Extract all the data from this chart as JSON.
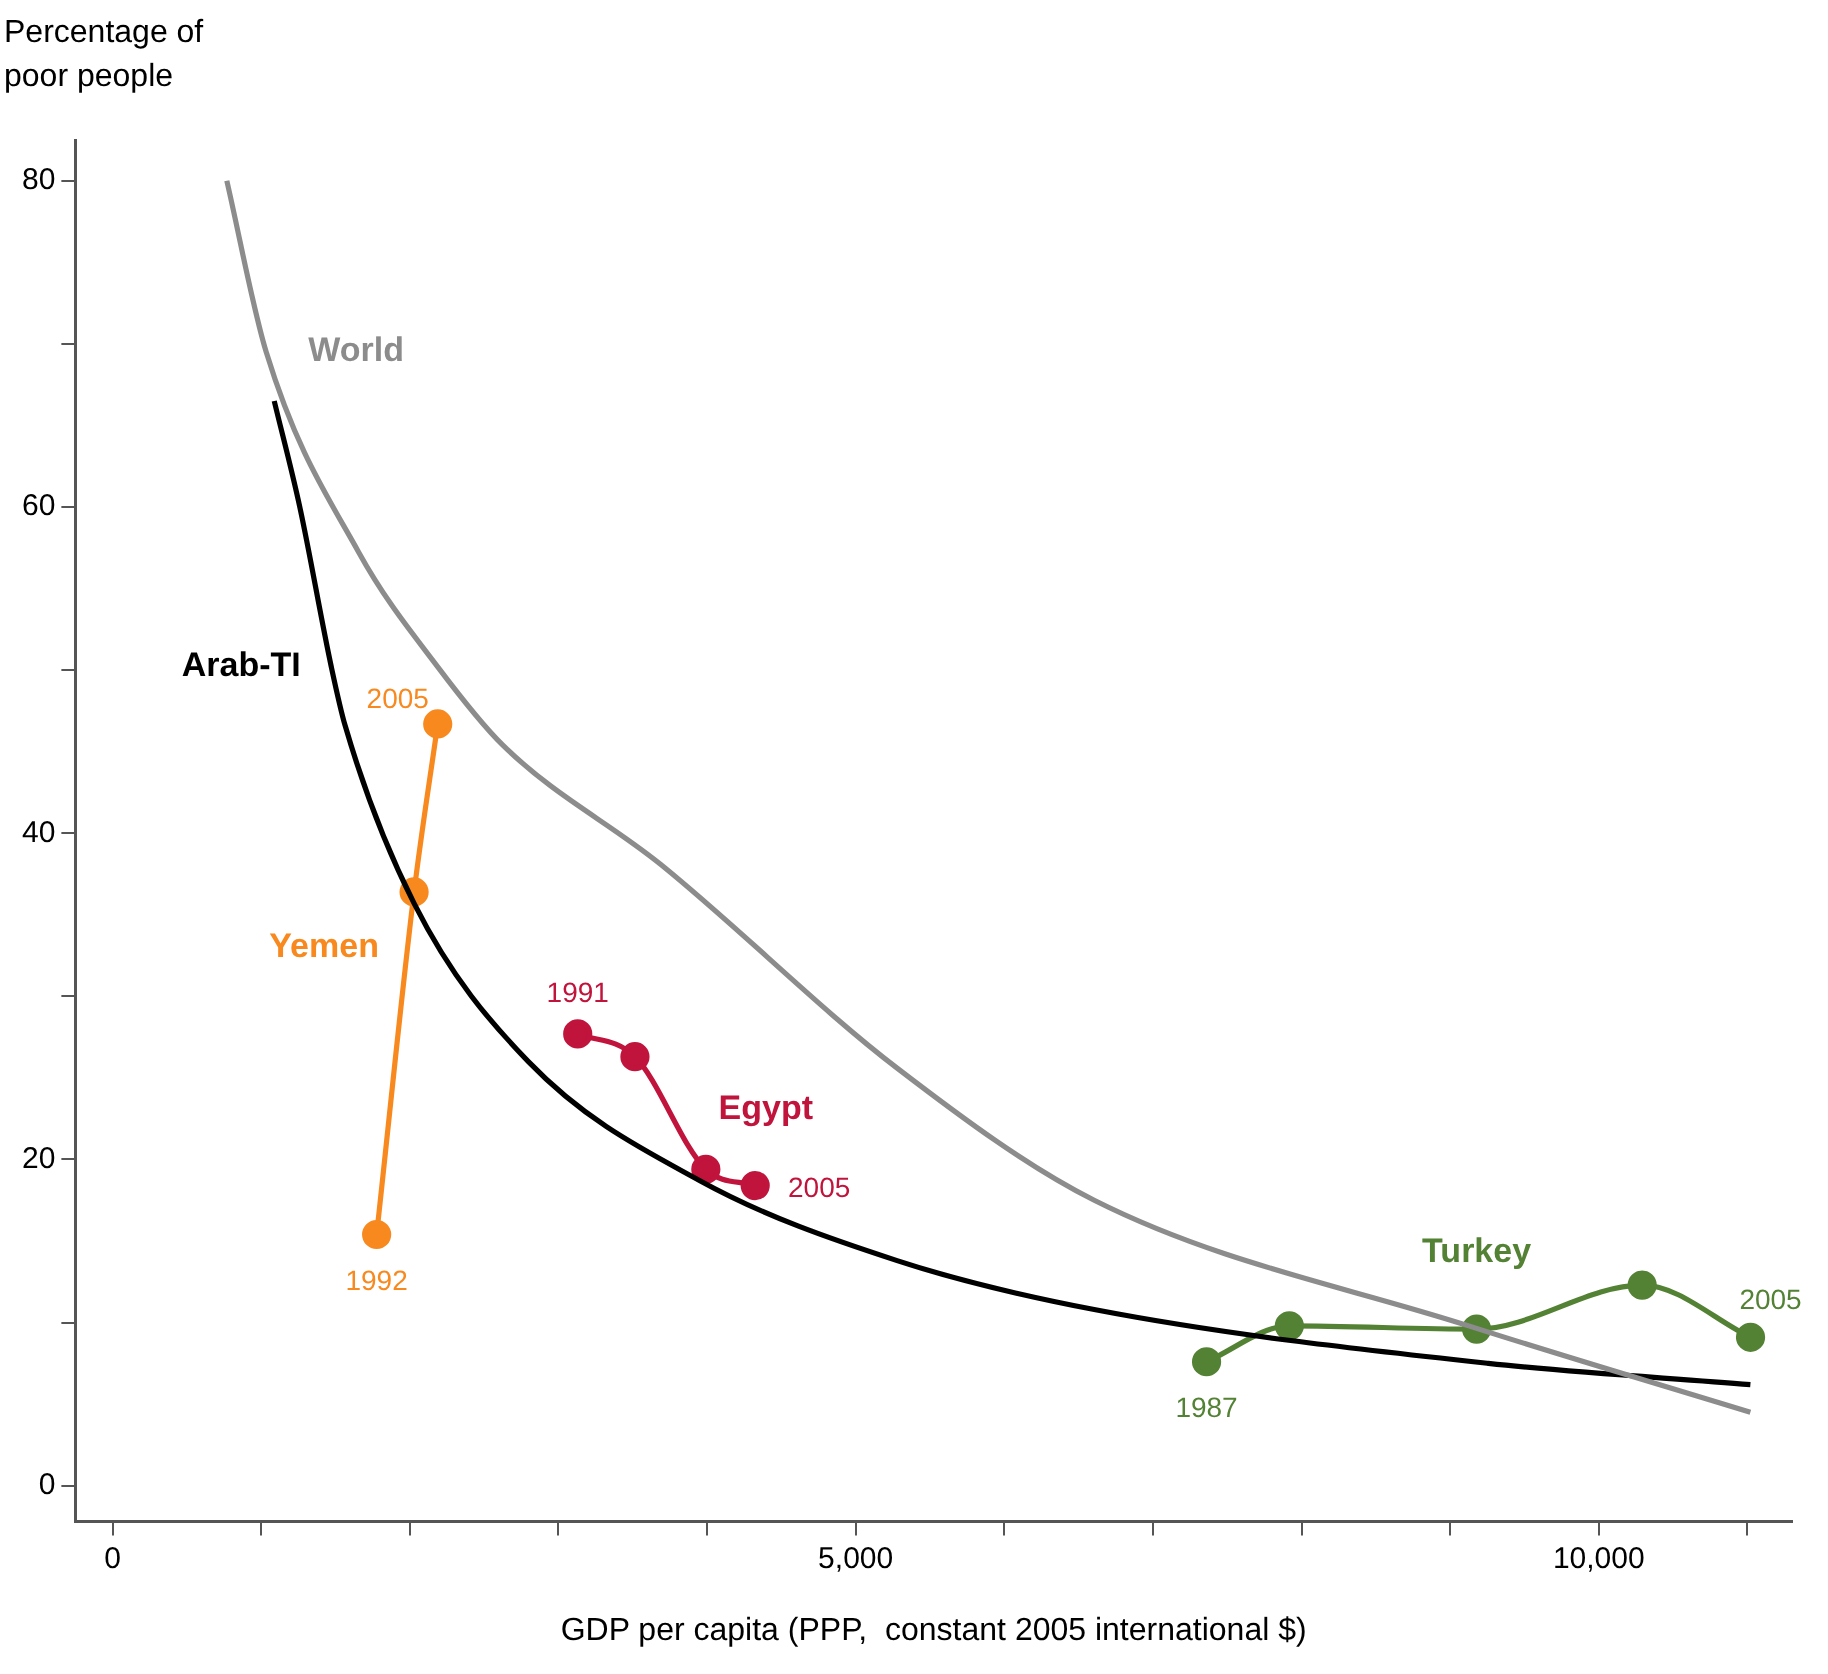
{
  "chart_data": {
    "type": "line",
    "xlabel": "GDP per capita (PPP,  constant 2005 international $)",
    "ylabel": "Percentage of poor people",
    "xlim": [
      -250,
      11300
    ],
    "ylim": [
      -2.2,
      82.5
    ],
    "xticks": [
      0,
      {
        "value": 1000,
        "label": null
      },
      {
        "value": 2000,
        "label": null
      },
      {
        "value": 3000,
        "label": null
      },
      {
        "value": 4000,
        "label": null
      },
      {
        "value": 5000,
        "label": "5,000"
      },
      {
        "value": 6000,
        "label": null
      },
      {
        "value": 7000,
        "label": null
      },
      {
        "value": 8000,
        "label": null
      },
      {
        "value": 9000,
        "label": null
      },
      {
        "value": 10000,
        "label": "10,000"
      },
      {
        "value": 11000,
        "label": null
      }
    ],
    "yticks": [
      0,
      {
        "value": 10,
        "label": null
      },
      20,
      {
        "value": 30,
        "label": null
      },
      40,
      {
        "value": 50,
        "label": null
      },
      60,
      {
        "value": 70,
        "label": null
      },
      80
    ],
    "grid": false,
    "legend": false,
    "series": [
      {
        "name": "World",
        "color": "#8c8c8c",
        "marker": "none",
        "x": [
          769,
          1034,
          1658,
          2188,
          2626,
          3687,
          5279,
          6605,
          9125,
          11020
        ],
        "values": [
          80,
          69.5,
          57.2,
          50.2,
          45.4,
          38.1,
          25.6,
          17.5,
          9.8,
          4.5
        ]
      },
      {
        "name": "Arab-TI",
        "color": "#000000",
        "marker": "none",
        "x": [
          1088,
          1260,
          1472,
          1565,
          2029,
          2798,
          3952,
          5279,
          6605,
          9257,
          11020
        ],
        "values": [
          66.5,
          60,
          50.2,
          46.6,
          35.7,
          26,
          18.7,
          13.8,
          10.8,
          7.5,
          6.2
        ]
      },
      {
        "name": "Yemen",
        "color": "#f7891f",
        "marker": "circle",
        "x": [
          1777,
          2029,
          2188
        ],
        "values": [
          15.4,
          36.4,
          46.7
        ]
      },
      {
        "name": "Egypt",
        "color": "#c0143c",
        "marker": "circle",
        "x": [
          3130,
          3515,
          3992,
          4324
        ],
        "values": [
          27.7,
          26.3,
          19.4,
          18.4
        ]
      },
      {
        "name": "Turkey",
        "color": "#548235",
        "marker": "circle",
        "x": [
          7361,
          7918,
          9178,
          10292,
          11021
        ],
        "values": [
          7.6,
          9.8,
          9.6,
          12.3,
          9.1
        ]
      }
    ],
    "annotations": [
      {
        "text": "1992",
        "x": 1777,
        "y": 15.4
      },
      {
        "text": "2005",
        "x": 2188,
        "y": 46.7
      },
      {
        "text": "1991",
        "x": 3130,
        "y": 27.7
      },
      {
        "text": "2005",
        "x": 4324,
        "y": 18.4
      },
      {
        "text": "1987",
        "x": 7361,
        "y": 7.6
      },
      {
        "text": "2005",
        "x": 11021,
        "y": 9.1
      }
    ]
  }
}
